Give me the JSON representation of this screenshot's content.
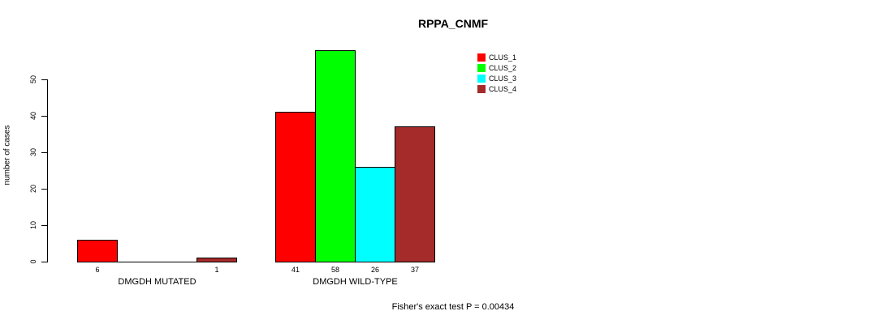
{
  "chart_data": {
    "type": "bar",
    "title": "RPPA_CNMF",
    "ylabel": "number of cases",
    "yticks": [
      0,
      10,
      20,
      30,
      40,
      50
    ],
    "ylim": [
      0,
      58
    ],
    "grid": false,
    "legend_position": "top-right",
    "categories": [
      "DMGDH MUTATED",
      "DMGDH WILD-TYPE"
    ],
    "series": [
      {
        "name": "CLUS_1",
        "color": "#ff0000",
        "values": [
          6,
          41
        ]
      },
      {
        "name": "CLUS_2",
        "color": "#00ff00",
        "values": [
          0,
          58
        ]
      },
      {
        "name": "CLUS_3",
        "color": "#00ffff",
        "values": [
          0,
          26
        ]
      },
      {
        "name": "CLUS_4",
        "color": "#a52a2a",
        "values": [
          1,
          37
        ]
      }
    ],
    "footnote": "Fisher's exact test P = 0.00434"
  }
}
